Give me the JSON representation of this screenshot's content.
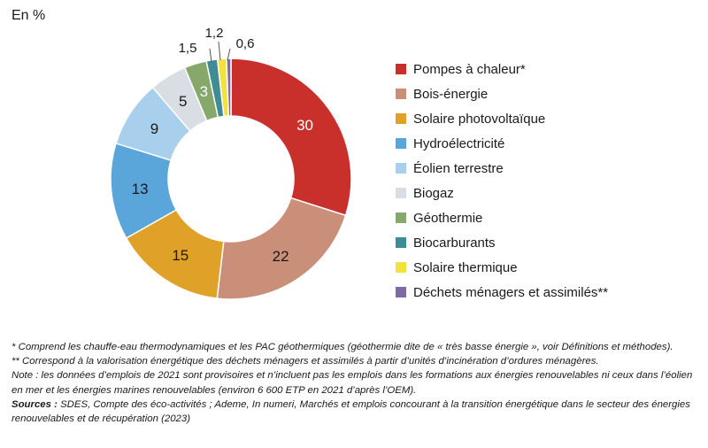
{
  "unit_label": "En %",
  "chart_data": {
    "type": "pie",
    "donut": true,
    "categories": [
      "Pompes à chaleur*",
      "Bois-énergie",
      "Solaire photovoltaïque",
      "Hydroélectricité",
      "Éolien terrestre",
      "Biogaz",
      "Géothermie",
      "Biocarburants",
      "Solaire thermique",
      "Déchets ménagers et assimilés**"
    ],
    "values": [
      30,
      22,
      15,
      13,
      9,
      5,
      3,
      1.5,
      1.2,
      0.6
    ],
    "value_labels": [
      "30",
      "22",
      "15",
      "13",
      "9",
      "5",
      "3",
      "1,5",
      "1,2",
      "0,6"
    ],
    "colors": [
      "#c9302c",
      "#c98f79",
      "#e0a128",
      "#5aa5da",
      "#a8d0ec",
      "#d9dde4",
      "#86a86a",
      "#3f8c94",
      "#f2e23d",
      "#7d6aa3"
    ],
    "label_colors": [
      "#ffffff",
      "#1a1a1a",
      "#1a1a1a",
      "#1a1a1a",
      "#1a1a1a",
      "#1a1a1a",
      "#ffffff",
      "#1a1a1a",
      "#1a1a1a",
      "#1a1a1a"
    ],
    "legend_placement": "right"
  },
  "notes": {
    "note1": "* Comprend les chauffe-eau thermodynamiques et les PAC géothermiques (géothermie dite de « très basse énergie », voir Définitions et méthodes).",
    "note2": "** Correspond à la valorisation énergétique des déchets ménagers et assimilés à partir d’unités d’incinération d’ordures ménagères.",
    "note3": "Note : les données d’emplois de 2021 sont provisoires et n’incluent pas les emplois dans les formations aux énergies renouvelables ni ceux dans l’éolien en mer et les énergies marines renouvelables (environ 6 600 ETP en 2021 d’après l’OEM).",
    "sources_label": "Sources :",
    "sources_text": " SDES, Compte des éco-activités ; Ademe, In numeri, Marchés et emplois concourant à la transition énergétique dans le secteur des énergies renouvelables et de récupération (2023)"
  }
}
